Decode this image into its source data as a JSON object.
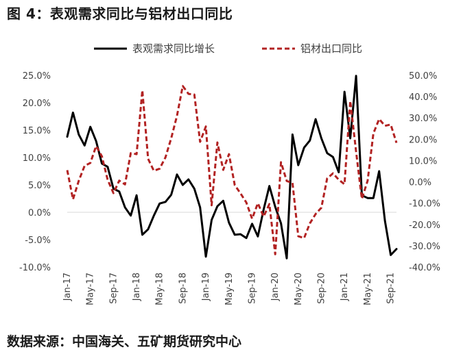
{
  "figure": {
    "title": "图 4：表观需求同比与铝材出口同比",
    "source": "数据来源：中国海关、五矿期货研究中心"
  },
  "colors": {
    "series1": "#000000",
    "series2": "#b22222",
    "grid": "#d9d9d9",
    "text": "#404040"
  },
  "chart_data": {
    "type": "line",
    "title": "",
    "legend_position": "top",
    "grid": false,
    "x": [
      "2017-01",
      "2017-02",
      "2017-03",
      "2017-04",
      "2017-05",
      "2017-06",
      "2017-07",
      "2017-08",
      "2017-09",
      "2017-10",
      "2017-11",
      "2017-12",
      "2018-01",
      "2018-02",
      "2018-03",
      "2018-04",
      "2018-05",
      "2018-06",
      "2018-07",
      "2018-08",
      "2018-09",
      "2018-10",
      "2018-11",
      "2018-12",
      "2019-01",
      "2019-02",
      "2019-03",
      "2019-04",
      "2019-05",
      "2019-06",
      "2019-07",
      "2019-08",
      "2019-09",
      "2019-10",
      "2019-11",
      "2019-12",
      "2020-01",
      "2020-02",
      "2020-03",
      "2020-04",
      "2020-05",
      "2020-06",
      "2020-07",
      "2020-08",
      "2020-09",
      "2020-10",
      "2020-11",
      "2020-12",
      "2021-01",
      "2021-02",
      "2021-03",
      "2021-04",
      "2021-05",
      "2021-06",
      "2021-07",
      "2021-08",
      "2021-09",
      "2021-10"
    ],
    "x_tick_labels": [
      "Jan-17",
      "May-17",
      "Sep-17",
      "Jan-18",
      "May-18",
      "Sep-18",
      "Jan-19",
      "May-19",
      "Sep-19",
      "Jan-20",
      "May-20",
      "Sep-20",
      "Jan-21",
      "May-21",
      "Sep-21"
    ],
    "y_left": {
      "ticks": [
        "25.0%",
        "20.0%",
        "15.0%",
        "10.0%",
        "5.0%",
        "0.0%",
        "-5.0%",
        "-10.0%"
      ],
      "lim": [
        -10,
        25
      ]
    },
    "y_right": {
      "ticks": [
        "50.0%",
        "40.0%",
        "30.0%",
        "20.0%",
        "10.0%",
        "0.0%",
        "-10.0%",
        "-20.0%",
        "-30.0%",
        "-40.0%"
      ],
      "lim": [
        -40,
        50
      ]
    },
    "series": [
      {
        "name": "表观需求同比增长",
        "axis": "left",
        "style": "solid",
        "values": [
          13.8,
          18.2,
          14.2,
          12.2,
          15.6,
          13.0,
          8.9,
          8.3,
          4.3,
          3.8,
          0.9,
          -0.6,
          3.1,
          -4.1,
          -3.1,
          -0.6,
          1.6,
          1.9,
          3.2,
          6.9,
          5.0,
          6.0,
          4.3,
          0.9,
          -8.1,
          -1.4,
          1.1,
          2.1,
          -1.9,
          -4.1,
          -4.0,
          -4.7,
          -2.1,
          -4.4,
          0.5,
          4.8,
          1.0,
          -2.0,
          -8.4,
          14.2,
          8.6,
          11.8,
          13.1,
          17.0,
          13.5,
          10.8,
          10.1,
          7.3,
          22.0,
          13.5,
          24.9,
          3.1,
          2.6,
          2.6,
          7.5,
          -1.6,
          -7.8,
          -6.7
        ]
      },
      {
        "name": "铝材出口同比",
        "axis": "right",
        "style": "dashed",
        "values": [
          5.5,
          -8.2,
          0.5,
          7.5,
          8.9,
          16.8,
          12.0,
          1.0,
          -5.3,
          0.6,
          -1.2,
          13.5,
          13.0,
          43.0,
          10.8,
          5.2,
          6.2,
          11.5,
          20.5,
          31.0,
          45.0,
          41.3,
          41.0,
          18.8,
          26.0,
          -11.0,
          18.5,
          5.6,
          13.0,
          -1.5,
          -5.4,
          -9.7,
          -17.3,
          -10.0,
          -16.3,
          -10.4,
          -34.0,
          9.2,
          0.4,
          -0.5,
          -25.5,
          -26.4,
          -19.5,
          -15.1,
          -12.1,
          1.6,
          4.0,
          1.0,
          -1.1,
          38.0,
          14.2,
          -8.0,
          0.5,
          22.7,
          29.5,
          26.3,
          26.9,
          18.3
        ]
      }
    ]
  }
}
